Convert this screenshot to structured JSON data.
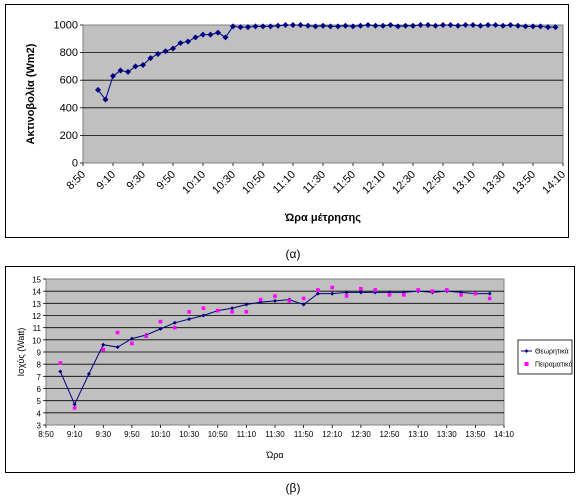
{
  "chart_data": [
    {
      "type": "line",
      "ylabel": "Ακτινοβολία (Wm2)",
      "xlabel": "Ώρα μέτρησης",
      "ylim": [
        0,
        1000
      ],
      "yticks": [
        0,
        200,
        400,
        600,
        800,
        1000
      ],
      "xticks": [
        "8:50",
        "9:10",
        "9:30",
        "9:50",
        "10:10",
        "10:30",
        "10:50",
        "11:10",
        "11:30",
        "11:50",
        "12:10",
        "12:30",
        "12:50",
        "13:10",
        "13:30",
        "13:50",
        "14:10"
      ],
      "grid": true,
      "plot_background": "#c0c0c0",
      "series": [
        {
          "color": "#000080",
          "x": [
            "9:00",
            "9:05",
            "9:10",
            "9:15",
            "9:20",
            "9:25",
            "9:30",
            "9:35",
            "9:40",
            "9:45",
            "9:50",
            "9:55",
            "10:00",
            "10:05",
            "10:10",
            "10:15",
            "10:20",
            "10:25",
            "10:30",
            "10:35",
            "10:40",
            "10:45",
            "10:50",
            "10:55",
            "11:00",
            "11:05",
            "11:10",
            "11:15",
            "11:20",
            "11:25",
            "11:30",
            "11:35",
            "11:40",
            "11:45",
            "11:50",
            "11:55",
            "12:00",
            "12:05",
            "12:10",
            "12:15",
            "12:20",
            "12:25",
            "12:30",
            "12:35",
            "12:40",
            "12:45",
            "12:50",
            "12:55",
            "13:00",
            "13:05",
            "13:10",
            "13:15",
            "13:20",
            "13:25",
            "13:30",
            "13:35",
            "13:40",
            "13:45",
            "13:50",
            "13:55",
            "14:00",
            "14:05"
          ],
          "values": [
            530,
            460,
            630,
            670,
            660,
            700,
            710,
            760,
            790,
            810,
            830,
            870,
            880,
            910,
            930,
            930,
            945,
            910,
            990,
            985,
            985,
            990,
            990,
            990,
            995,
            1000,
            1000,
            1000,
            995,
            990,
            995,
            990,
            990,
            995,
            990,
            995,
            1000,
            995,
            995,
            1000,
            990,
            995,
            995,
            1000,
            1000,
            995,
            1000,
            1000,
            995,
            1000,
            1000,
            995,
            1000,
            1000,
            995,
            1000,
            995,
            990,
            990,
            990,
            985,
            985
          ]
        }
      ]
    },
    {
      "type": "line",
      "ylabel": "Ισχύς (Watt)",
      "xlabel": "Ώρα",
      "ylim": [
        3,
        15
      ],
      "yticks": [
        3,
        4,
        5,
        6,
        7,
        8,
        9,
        10,
        11,
        12,
        13,
        14,
        15
      ],
      "xticks": [
        "8:50",
        "9:10",
        "9:30",
        "9:50",
        "10:10",
        "10:30",
        "10:50",
        "11:10",
        "11:30",
        "11:50",
        "12:10",
        "12:30",
        "12:50",
        "13:10",
        "13:30",
        "13:50",
        "14:10"
      ],
      "grid": true,
      "plot_background": "#c0c0c0",
      "legend": "right",
      "series": [
        {
          "name": "Θεωρητικά",
          "color": "#000080",
          "marker": "diamond",
          "x": [
            "9:00",
            "9:10",
            "9:20",
            "9:30",
            "9:40",
            "9:50",
            "10:00",
            "10:10",
            "10:20",
            "10:30",
            "10:40",
            "10:50",
            "11:00",
            "11:10",
            "11:20",
            "11:30",
            "11:40",
            "11:50",
            "12:00",
            "12:10",
            "12:20",
            "12:30",
            "12:40",
            "12:50",
            "13:00",
            "13:10",
            "13:20",
            "13:30",
            "13:40",
            "13:50",
            "14:00"
          ],
          "values": [
            7.4,
            4.7,
            7.2,
            9.6,
            9.4,
            10.1,
            10.4,
            10.9,
            11.4,
            11.7,
            12.0,
            12.4,
            12.6,
            12.9,
            13.1,
            13.2,
            13.3,
            12.9,
            13.8,
            13.8,
            13.9,
            13.9,
            13.9,
            13.9,
            13.9,
            14.0,
            13.9,
            14.0,
            13.9,
            13.8,
            13.8
          ]
        },
        {
          "name": "Πειραματικά",
          "color": "#ff00ff",
          "marker": "square",
          "x": [
            "9:00",
            "9:10",
            "9:30",
            "9:40",
            "9:50",
            "10:00",
            "10:10",
            "10:20",
            "10:30",
            "10:40",
            "10:50",
            "11:00",
            "11:10",
            "11:20",
            "11:30",
            "11:40",
            "11:50",
            "12:00",
            "12:10",
            "12:20",
            "12:30",
            "12:40",
            "12:50",
            "13:00",
            "13:10",
            "13:20",
            "13:30",
            "13:40",
            "13:50",
            "14:00"
          ],
          "values": [
            8.1,
            4.4,
            9.2,
            10.6,
            9.7,
            10.3,
            11.5,
            11.0,
            12.3,
            12.6,
            12.4,
            12.3,
            12.3,
            13.3,
            13.6,
            13.2,
            13.4,
            14.1,
            14.3,
            13.6,
            14.2,
            14.1,
            13.7,
            13.7,
            14.1,
            14.0,
            14.1,
            13.7,
            13.8,
            13.4
          ]
        }
      ]
    }
  ],
  "captions": {
    "a": "(α)",
    "b": "(β)"
  }
}
